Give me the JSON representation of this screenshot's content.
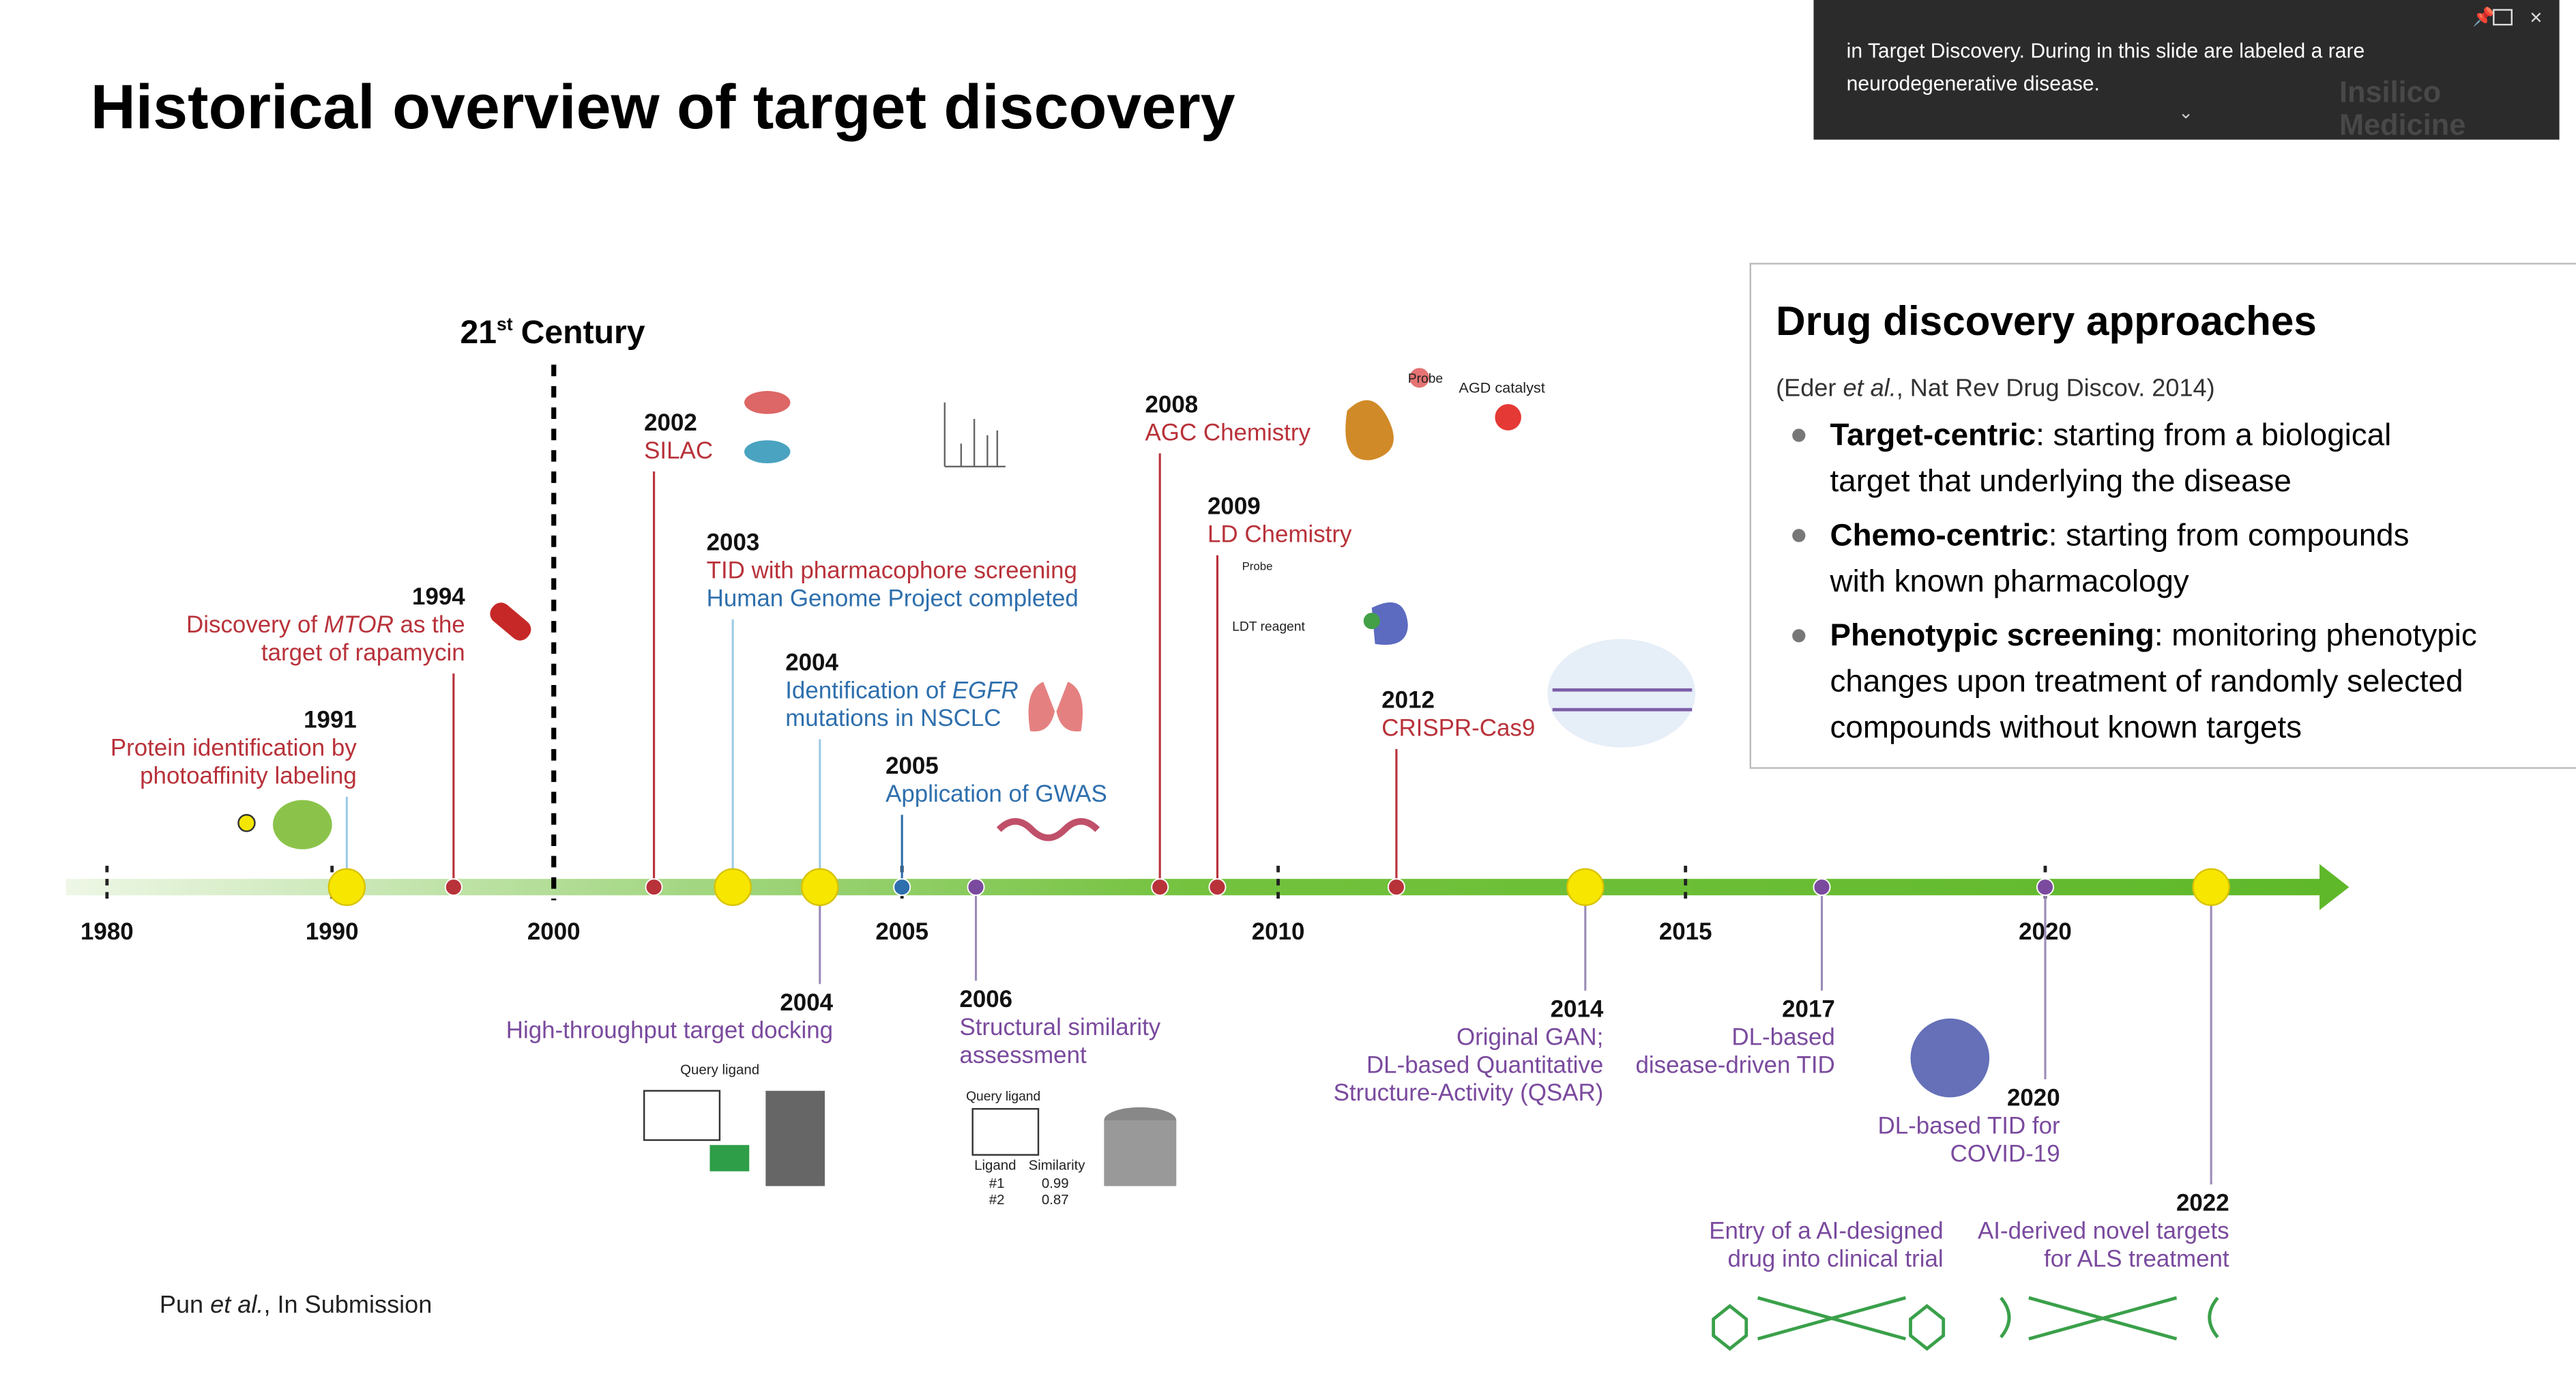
{
  "title": "Historical overview of target discovery",
  "caption": {
    "lines": [
      "in Target Discovery. During in this slide are labeled a rare",
      "neurodegenerative disease."
    ]
  },
  "logo": {
    "lines": [
      "Insilico",
      "Medicine"
    ]
  },
  "century": {
    "number": "21",
    "suffix": "st",
    "word": "Century"
  },
  "axis_years": [
    "1980",
    "1990",
    "2000",
    "2005",
    "2010",
    "2015",
    "2020"
  ],
  "events": [
    {
      "year": "1991",
      "lines": [
        {
          "color": "#b8323a",
          "parts": [
            {
              "text": "Protein identification by"
            }
          ]
        },
        {
          "color": "#b8323a",
          "parts": [
            {
              "text": "photoaffinity labeling"
            }
          ]
        }
      ]
    },
    {
      "year": "1994",
      "lines": [
        {
          "color": "#b8323a",
          "parts": [
            {
              "text": "Discovery of "
            },
            {
              "text": "MTOR",
              "italic": true
            },
            {
              "text": " as the"
            }
          ]
        },
        {
          "color": "#b8323a",
          "parts": [
            {
              "text": "target of rapamycin"
            }
          ]
        }
      ]
    },
    {
      "year": "2002",
      "lines": [
        {
          "color": "#b8323a",
          "parts": [
            {
              "text": "SILAC"
            }
          ]
        }
      ]
    },
    {
      "year": "2003",
      "lines": [
        {
          "color": "#b8323a",
          "parts": [
            {
              "text": "TID with pharmacophore screening"
            }
          ]
        },
        {
          "color": "#2e6fad",
          "parts": [
            {
              "text": "Human Genome Project completed"
            }
          ]
        }
      ]
    },
    {
      "year": "2004",
      "lines": [
        {
          "color": "#2e6fad",
          "parts": [
            {
              "text": "Identification of "
            },
            {
              "text": "EGFR",
              "italic": true
            }
          ]
        },
        {
          "color": "#2e6fad",
          "parts": [
            {
              "text": "mutations in NSCLC"
            }
          ]
        }
      ]
    },
    {
      "year": "2005",
      "lines": [
        {
          "color": "#2e6fad",
          "parts": [
            {
              "text": "Application of GWAS"
            }
          ]
        }
      ]
    },
    {
      "year": "2008",
      "lines": [
        {
          "color": "#b8323a",
          "parts": [
            {
              "text": "AGC Chemistry"
            }
          ]
        }
      ]
    },
    {
      "year": "2009",
      "lines": [
        {
          "color": "#b8323a",
          "parts": [
            {
              "text": "LD Chemistry"
            }
          ]
        }
      ]
    },
    {
      "year": "2012",
      "lines": [
        {
          "color": "#b8323a",
          "parts": [
            {
              "text": "CRISPR-Cas9"
            }
          ]
        }
      ]
    },
    {
      "year": "2004",
      "lines": [
        {
          "color": "#7a4a9e",
          "parts": [
            {
              "text": "High-throughput target docking"
            }
          ]
        }
      ]
    },
    {
      "year": "2006",
      "lines": [
        {
          "color": "#7a4a9e",
          "parts": [
            {
              "text": "Structural similarity"
            }
          ]
        },
        {
          "color": "#7a4a9e",
          "parts": [
            {
              "text": "assessment"
            }
          ]
        }
      ]
    },
    {
      "year": "2014",
      "lines": [
        {
          "color": "#7a4a9e",
          "parts": [
            {
              "text": "Original GAN;"
            }
          ]
        },
        {
          "color": "#7a4a9e",
          "parts": [
            {
              "text": "DL-based Quantitative"
            }
          ]
        },
        {
          "color": "#7a4a9e",
          "parts": [
            {
              "text": "Structure-Activity (QSAR)"
            }
          ]
        }
      ]
    },
    {
      "year": "2017",
      "lines": [
        {
          "color": "#7a4a9e",
          "parts": [
            {
              "text": "DL-based"
            }
          ]
        },
        {
          "color": "#7a4a9e",
          "parts": [
            {
              "text": "disease-driven TID"
            }
          ]
        }
      ]
    },
    {
      "year": "2020",
      "lines": [
        {
          "color": "#7a4a9e",
          "parts": [
            {
              "text": "DL-based TID for"
            }
          ]
        },
        {
          "color": "#7a4a9e",
          "parts": [
            {
              "text": "COVID-19"
            }
          ]
        }
      ]
    },
    {
      "year": "2022",
      "lines": [
        {
          "color": "#7a4a9e",
          "parts": [
            {
              "text": "AI-derived novel targets"
            }
          ]
        },
        {
          "color": "#7a4a9e",
          "parts": [
            {
              "text": "for ALS treatment"
            }
          ]
        }
      ]
    }
  ],
  "extra_note": {
    "lines": [
      "Entry of a AI-designed",
      "drug into clinical trial"
    ]
  },
  "figure_labels": [
    "Probe",
    "AGD catalyst",
    "Probe",
    "LDT reagent",
    "Query ligand",
    "Query ligand",
    "Ligand",
    "Similarity",
    "#1",
    "0.99",
    "#2",
    "0.87"
  ],
  "approaches": {
    "title": "Drug discovery approaches",
    "citation": [
      {
        "text": "(Eder "
      },
      {
        "text": "et al.",
        "italic": true
      },
      {
        "text": ", Nat Rev Drug Discov. 2014)"
      }
    ],
    "bullets": [
      [
        [
          {
            "text": "Target-centric",
            "bold": true
          },
          {
            "text": ": starting from a biological"
          }
        ],
        [
          {
            "text": "target that underlying the disease"
          }
        ]
      ],
      [
        [
          {
            "text": "Chemo-centric",
            "bold": true
          },
          {
            "text": ": starting from compounds"
          }
        ],
        [
          {
            "text": "with known pharmacology"
          }
        ]
      ],
      [
        [
          {
            "text": "Phenotypic screening",
            "bold": true
          },
          {
            "text": ": monitoring phenotypic"
          }
        ],
        [
          {
            "text": "changes upon treatment of randomly selected"
          }
        ],
        [
          {
            "text": "compounds without known targets"
          }
        ]
      ]
    ]
  },
  "reference": [
    {
      "text": "Pun "
    },
    {
      "text": "et al.",
      "italic": true
    },
    {
      "text": ", In Submission"
    }
  ]
}
